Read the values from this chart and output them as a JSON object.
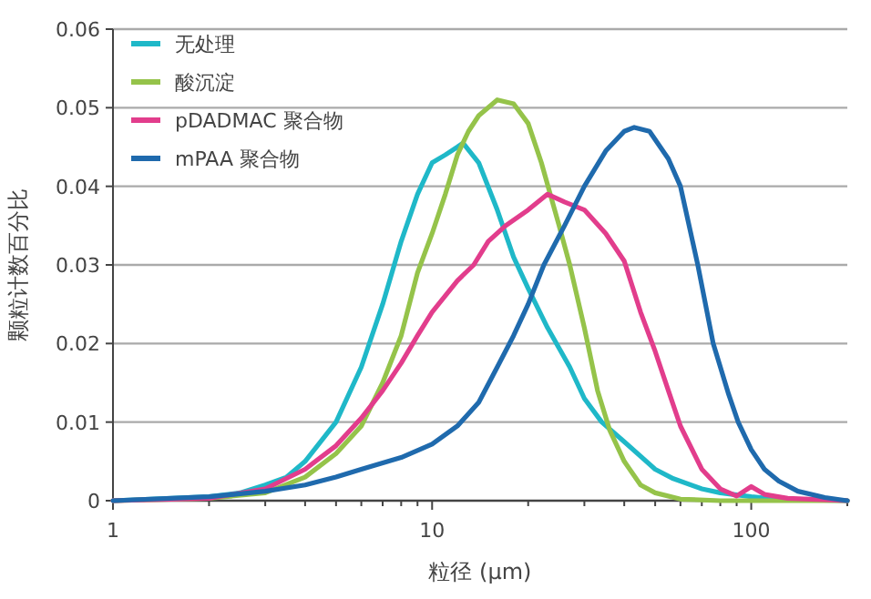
{
  "chart_data": {
    "type": "line",
    "xlabel": "粒径 (μm)",
    "ylabel": "颗粒计数百分比",
    "log": "x",
    "xlim": [
      1,
      200
    ],
    "xticks": [
      1,
      10,
      100
    ],
    "ylim": [
      0,
      0.06
    ],
    "yticks": [
      0,
      0.01,
      0.02,
      0.03,
      0.04,
      0.05,
      0.06
    ],
    "grid": "y",
    "legend": "top left",
    "line_style": "solid",
    "marker": "none",
    "series": [
      {
        "name": "无处理",
        "color": "#1fb8c8",
        "x": [
          1,
          2,
          2.5,
          3,
          3.5,
          4,
          5,
          6,
          7,
          8,
          9,
          10,
          11,
          12,
          12.5,
          14,
          16,
          18,
          20,
          23,
          27,
          30,
          34,
          40,
          50,
          57,
          70,
          80,
          100,
          120,
          200
        ],
        "values": [
          0,
          0.0005,
          0.001,
          0.002,
          0.003,
          0.005,
          0.01,
          0.017,
          0.025,
          0.033,
          0.039,
          0.043,
          0.044,
          0.045,
          0.0455,
          0.043,
          0.037,
          0.031,
          0.027,
          0.022,
          0.017,
          0.013,
          0.01,
          0.0075,
          0.004,
          0.0028,
          0.0015,
          0.001,
          0.0005,
          0.0002,
          0
        ]
      },
      {
        "name": "酸沉淀",
        "color": "#95c34a",
        "x": [
          1,
          2,
          3,
          4,
          5,
          6,
          7,
          8,
          9,
          10,
          11,
          12,
          13,
          14,
          16,
          18,
          20,
          22,
          25,
          27,
          30,
          33,
          36,
          40,
          45,
          50,
          60,
          80,
          200
        ],
        "values": [
          0,
          0.0003,
          0.001,
          0.003,
          0.006,
          0.0095,
          0.015,
          0.021,
          0.029,
          0.034,
          0.039,
          0.044,
          0.047,
          0.049,
          0.051,
          0.0505,
          0.048,
          0.043,
          0.035,
          0.03,
          0.022,
          0.014,
          0.009,
          0.005,
          0.002,
          0.001,
          0.0002,
          0,
          0
        ]
      },
      {
        "name": "pDADMAC 聚合物",
        "color": "#e23d8c",
        "x": [
          1,
          2,
          3,
          4,
          5,
          6,
          7,
          8,
          9,
          10,
          12,
          13.5,
          15,
          17,
          20,
          23,
          26,
          30,
          35,
          40,
          45,
          50,
          55,
          60,
          70,
          80,
          90,
          100,
          110,
          130,
          200
        ],
        "values": [
          0,
          0.0003,
          0.0015,
          0.004,
          0.007,
          0.0105,
          0.014,
          0.0175,
          0.021,
          0.024,
          0.028,
          0.03,
          0.033,
          0.035,
          0.037,
          0.039,
          0.038,
          0.037,
          0.034,
          0.0305,
          0.024,
          0.019,
          0.014,
          0.0095,
          0.004,
          0.0015,
          0.0006,
          0.0018,
          0.0008,
          0.0003,
          0
        ]
      },
      {
        "name": "mPAA 聚合物",
        "color": "#1f6aad",
        "x": [
          1,
          2,
          3,
          4,
          5,
          6,
          8,
          10,
          12,
          14,
          16,
          18,
          20,
          22.4,
          26,
          30,
          35,
          40,
          43,
          48,
          55,
          60,
          68,
          76,
          85,
          91,
          100,
          110,
          122,
          140,
          170,
          200
        ],
        "values": [
          0,
          0.0005,
          0.0012,
          0.002,
          0.003,
          0.004,
          0.0055,
          0.0072,
          0.0095,
          0.0125,
          0.017,
          0.021,
          0.025,
          0.03,
          0.035,
          0.04,
          0.0445,
          0.047,
          0.0475,
          0.047,
          0.0435,
          0.04,
          0.03,
          0.02,
          0.0135,
          0.01,
          0.0065,
          0.004,
          0.0025,
          0.0012,
          0.0004,
          0
        ]
      }
    ]
  }
}
